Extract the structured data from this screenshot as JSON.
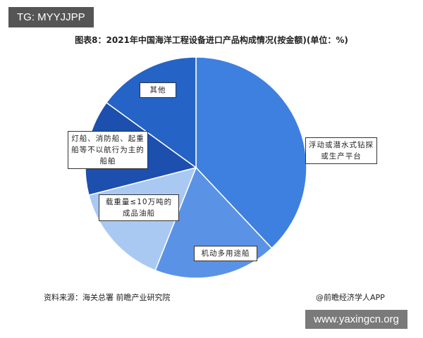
{
  "badge": "TG: MYYJJPP",
  "chart_data": {
    "type": "pie",
    "title": "图表8：2021年中国海洋工程设备进口产品构成情况(按金额)(单位：%)",
    "categories": [
      "浮动或潜水式钻探或生产平台",
      "机动多用途船",
      "载重量≤10万吨的成品油船",
      "灯船、消防船、起重船等不以航行为主的船舶",
      "其他"
    ],
    "values": [
      38,
      18,
      15,
      14,
      15
    ],
    "colors": [
      "#3e80e0",
      "#5a93e6",
      "#a9c9f3",
      "#1c4fae",
      "#2563c6"
    ]
  },
  "source": "资料来源：海关总署 前瞻产业研究院",
  "credit": "@前瞻经济学人APP",
  "watermark": "www.yaxingcn.org"
}
